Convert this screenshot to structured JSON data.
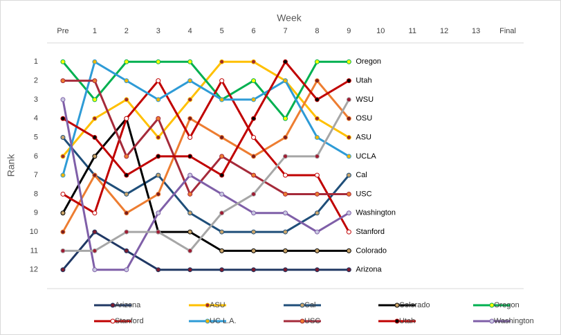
{
  "chart_data": {
    "type": "line",
    "x_label": "Week",
    "y_label": "Rank",
    "categories": [
      "Pre",
      "1",
      "2",
      "3",
      "4",
      "5",
      "6",
      "7",
      "8",
      "9",
      "10",
      "11",
      "12",
      "13",
      "Final"
    ],
    "ylim": [
      13,
      0
    ],
    "yticks": [
      1,
      2,
      3,
      4,
      5,
      6,
      7,
      8,
      9,
      10,
      11,
      12
    ],
    "y_reversed": true,
    "series": [
      {
        "name": "Arizona",
        "label": "Arizona",
        "color": "#203864",
        "marker_color": "#7b1c2e",
        "values": [
          12,
          10,
          11,
          12,
          12,
          12,
          12,
          12,
          12,
          12,
          null,
          null,
          null,
          null,
          null
        ]
      },
      {
        "name": "ASU",
        "label": "ASU",
        "color": "#ffc000",
        "marker_color": "#9e2a2a",
        "values": [
          6,
          4,
          3,
          5,
          3,
          1,
          1,
          2,
          4,
          5,
          null,
          null,
          null,
          null,
          null
        ]
      },
      {
        "name": "Cal",
        "label": "Cal",
        "color": "#1f4e79",
        "marker_color": "#c9a46a",
        "values": [
          5,
          7,
          8,
          7,
          9,
          10,
          10,
          10,
          9,
          7,
          null,
          null,
          null,
          null,
          null
        ]
      },
      {
        "name": "Colorado",
        "label": "Colorado",
        "color": "#000000",
        "marker_color": "#c9a46a",
        "values": [
          9,
          6,
          4,
          10,
          10,
          11,
          11,
          11,
          11,
          11,
          null,
          null,
          null,
          null,
          null
        ]
      },
      {
        "name": "Oregon",
        "label": "Oregon",
        "color": "#00b050",
        "marker_color": "#ffff00",
        "values": [
          1,
          3,
          1,
          1,
          1,
          3,
          2,
          4,
          1,
          1,
          null,
          null,
          null,
          null,
          null
        ]
      },
      {
        "name": "OSU",
        "label": "OSU",
        "color": "#ed7d31",
        "marker_color": "#7b1c1c",
        "values": [
          10,
          7,
          9,
          8,
          4,
          5,
          6,
          5,
          2,
          4,
          null,
          null,
          null,
          null,
          null
        ]
      },
      {
        "name": "Stanford",
        "label": "Stanford",
        "color": "#c00000",
        "marker_color": "#ffffff",
        "values": [
          8,
          9,
          4,
          2,
          5,
          2,
          5,
          7,
          7,
          10,
          null,
          null,
          null,
          null,
          null
        ]
      },
      {
        "name": "UC L.A.",
        "label": "UCLA",
        "color": "#2e9bd6",
        "marker_color": "#f2b500",
        "values": [
          7,
          1,
          2,
          3,
          2,
          3,
          3,
          2,
          5,
          6,
          null,
          null,
          null,
          null,
          null
        ]
      },
      {
        "name": "USC",
        "label": "USC",
        "color": "#a52a3a",
        "marker_color": "#ed7d31",
        "values": [
          2,
          2,
          6,
          4,
          8,
          6,
          7,
          8,
          8,
          8,
          null,
          null,
          null,
          null,
          null
        ]
      },
      {
        "name": "Utah",
        "label": "Utah",
        "color": "#c00000",
        "marker_color": "#000000",
        "values": [
          4,
          5,
          7,
          6,
          6,
          7,
          4,
          1,
          3,
          2,
          null,
          null,
          null,
          null,
          null
        ]
      },
      {
        "name": "Washington",
        "label": "Washington",
        "color": "#7f5fa8",
        "marker_color": "#c8c8e0",
        "values": [
          3,
          12,
          12,
          9,
          7,
          8,
          9,
          9,
          10,
          9,
          null,
          null,
          null,
          null,
          null
        ]
      },
      {
        "name": "WSU",
        "label": "WSU",
        "color": "#a6a6a6",
        "marker_color": "#9e1b32",
        "values": [
          11,
          11,
          10,
          10,
          11,
          9,
          8,
          6,
          6,
          3,
          null,
          null,
          null,
          null,
          null
        ]
      }
    ]
  }
}
